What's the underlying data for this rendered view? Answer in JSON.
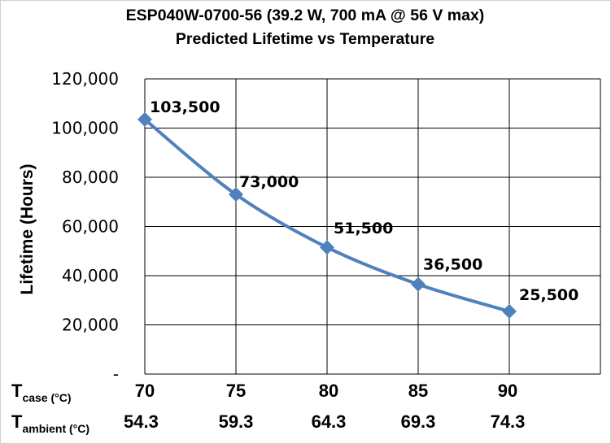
{
  "chart_data": {
    "type": "line",
    "title": "ESP040W-0700-56 (39.2 W, 700 mA @ 56 V max)",
    "subtitle": "Predicted Lifetime vs Temperature",
    "ylabel": "Lifetime (Hours)",
    "ylim": [
      0,
      120000
    ],
    "yticks": [
      0,
      20000,
      40000,
      60000,
      80000,
      100000,
      120000
    ],
    "ytick_labels": [
      "-",
      "20,000",
      "40,000",
      "60,000",
      "80,000",
      "100,000",
      "120,000"
    ],
    "x_rows": [
      {
        "label": "T",
        "sub": "case (°C)",
        "values": [
          "70",
          "75",
          "80",
          "85",
          "90"
        ]
      },
      {
        "label": "T",
        "sub": "ambient (°C)",
        "values": [
          "54.3",
          "59.3",
          "64.3",
          "69.3",
          "74.3"
        ]
      }
    ],
    "x": [
      70,
      75,
      80,
      85,
      90
    ],
    "xlim": [
      70,
      95
    ],
    "series": [
      {
        "values": [
          103500,
          73000,
          51500,
          36500,
          25500
        ],
        "labels": [
          "103,500",
          "73,000",
          "51,500",
          "36,500",
          "25,500"
        ],
        "color": "#4f81bd"
      }
    ],
    "grid": true
  }
}
